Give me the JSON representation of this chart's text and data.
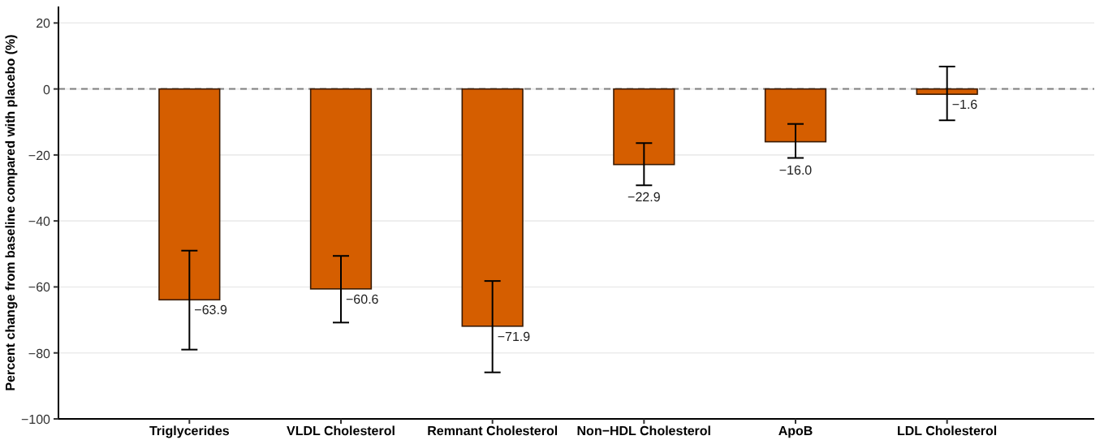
{
  "chart_data": {
    "type": "bar",
    "ylabel": "Percent change from baseline compared with placebo (%)",
    "categories": [
      "Triglycerides",
      "VLDL Cholesterol",
      "Remnant Cholesterol",
      "Non−HDL Cholesterol",
      "ApoB",
      "LDL Cholesterol"
    ],
    "values": [
      -63.9,
      -60.6,
      -71.9,
      -22.9,
      -16.0,
      -1.6
    ],
    "value_labels": [
      "−63.9",
      "−60.6",
      "−71.9",
      "−22.9",
      "−16.0",
      "−1.6"
    ],
    "errors": [
      [
        -79,
        -49
      ],
      [
        -70.8,
        -50.6
      ],
      [
        -85.9,
        -58.2
      ],
      [
        -29.2,
        -16.4
      ],
      [
        -20.9,
        -10.6
      ],
      [
        -9.5,
        6.8
      ]
    ],
    "color": "#d55e00",
    "ylim": [
      -100,
      25
    ],
    "yticks": [
      {
        "value": -100,
        "label": "−100"
      },
      {
        "value": -80,
        "label": "−80"
      },
      {
        "value": -60,
        "label": "−60"
      },
      {
        "value": -40,
        "label": "−40"
      },
      {
        "value": -20,
        "label": "−20"
      },
      0,
      20
    ],
    "grid": "y",
    "ref_lines": [
      {
        "axis": "y",
        "value": 0,
        "line_style": "dashed",
        "color": "#808080"
      }
    ]
  }
}
